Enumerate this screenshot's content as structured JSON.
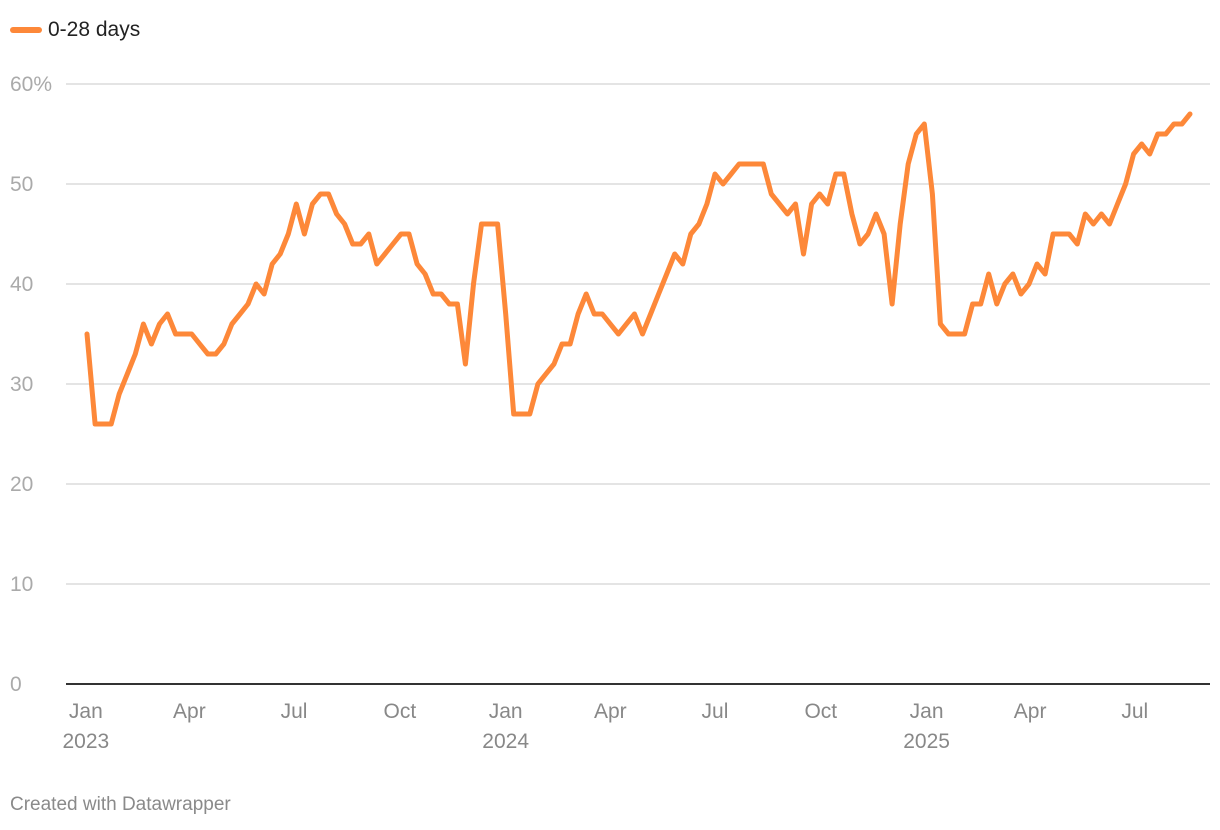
{
  "chart_data": {
    "type": "line",
    "legend_position": "top-left",
    "grid": true,
    "series": [
      {
        "name": "0-28 days",
        "color": "#fd8839",
        "points": [
          [
            "2023-01-02",
            35
          ],
          [
            "2023-01-09",
            26
          ],
          [
            "2023-01-16",
            26
          ],
          [
            "2023-01-23",
            26
          ],
          [
            "2023-01-30",
            29
          ],
          [
            "2023-02-06",
            31
          ],
          [
            "2023-02-13",
            33
          ],
          [
            "2023-02-20",
            36
          ],
          [
            "2023-02-27",
            34
          ],
          [
            "2023-03-06",
            36
          ],
          [
            "2023-03-13",
            37
          ],
          [
            "2023-03-20",
            35
          ],
          [
            "2023-03-27",
            35
          ],
          [
            "2023-04-03",
            35
          ],
          [
            "2023-04-10",
            34
          ],
          [
            "2023-04-17",
            33
          ],
          [
            "2023-04-24",
            33
          ],
          [
            "2023-05-01",
            34
          ],
          [
            "2023-05-08",
            36
          ],
          [
            "2023-05-15",
            37
          ],
          [
            "2023-05-22",
            38
          ],
          [
            "2023-05-29",
            40
          ],
          [
            "2023-06-05",
            39
          ],
          [
            "2023-06-12",
            42
          ],
          [
            "2023-06-19",
            43
          ],
          [
            "2023-06-26",
            45
          ],
          [
            "2023-07-03",
            48
          ],
          [
            "2023-07-10",
            45
          ],
          [
            "2023-07-17",
            48
          ],
          [
            "2023-07-24",
            49
          ],
          [
            "2023-07-31",
            49
          ],
          [
            "2023-08-07",
            47
          ],
          [
            "2023-08-14",
            46
          ],
          [
            "2023-08-21",
            44
          ],
          [
            "2023-08-28",
            44
          ],
          [
            "2023-09-04",
            45
          ],
          [
            "2023-09-11",
            42
          ],
          [
            "2023-09-18",
            43
          ],
          [
            "2023-09-25",
            44
          ],
          [
            "2023-10-02",
            45
          ],
          [
            "2023-10-09",
            45
          ],
          [
            "2023-10-16",
            42
          ],
          [
            "2023-10-23",
            41
          ],
          [
            "2023-10-30",
            39
          ],
          [
            "2023-11-06",
            39
          ],
          [
            "2023-11-13",
            38
          ],
          [
            "2023-11-20",
            38
          ],
          [
            "2023-11-27",
            32
          ],
          [
            "2023-12-04",
            40
          ],
          [
            "2023-12-11",
            46
          ],
          [
            "2023-12-18",
            46
          ],
          [
            "2023-12-25",
            46
          ],
          [
            "2024-01-01",
            37
          ],
          [
            "2024-01-08",
            27
          ],
          [
            "2024-01-15",
            27
          ],
          [
            "2024-01-22",
            27
          ],
          [
            "2024-01-29",
            30
          ],
          [
            "2024-02-05",
            31
          ],
          [
            "2024-02-12",
            32
          ],
          [
            "2024-02-19",
            34
          ],
          [
            "2024-02-26",
            34
          ],
          [
            "2024-03-04",
            37
          ],
          [
            "2024-03-11",
            39
          ],
          [
            "2024-03-18",
            37
          ],
          [
            "2024-03-25",
            37
          ],
          [
            "2024-04-01",
            36
          ],
          [
            "2024-04-08",
            35
          ],
          [
            "2024-04-15",
            36
          ],
          [
            "2024-04-22",
            37
          ],
          [
            "2024-04-29",
            35
          ],
          [
            "2024-05-06",
            37
          ],
          [
            "2024-05-13",
            39
          ],
          [
            "2024-05-20",
            41
          ],
          [
            "2024-05-27",
            43
          ],
          [
            "2024-06-03",
            42
          ],
          [
            "2024-06-10",
            45
          ],
          [
            "2024-06-17",
            46
          ],
          [
            "2024-06-24",
            48
          ],
          [
            "2024-07-01",
            51
          ],
          [
            "2024-07-08",
            50
          ],
          [
            "2024-07-15",
            51
          ],
          [
            "2024-07-22",
            52
          ],
          [
            "2024-07-29",
            52
          ],
          [
            "2024-08-05",
            52
          ],
          [
            "2024-08-12",
            52
          ],
          [
            "2024-08-19",
            49
          ],
          [
            "2024-08-26",
            48
          ],
          [
            "2024-09-02",
            47
          ],
          [
            "2024-09-09",
            48
          ],
          [
            "2024-09-16",
            43
          ],
          [
            "2024-09-23",
            48
          ],
          [
            "2024-09-30",
            49
          ],
          [
            "2024-10-07",
            48
          ],
          [
            "2024-10-14",
            51
          ],
          [
            "2024-10-21",
            51
          ],
          [
            "2024-10-28",
            47
          ],
          [
            "2024-11-04",
            44
          ],
          [
            "2024-11-11",
            45
          ],
          [
            "2024-11-18",
            47
          ],
          [
            "2024-11-25",
            45
          ],
          [
            "2024-12-02",
            38
          ],
          [
            "2024-12-09",
            46
          ],
          [
            "2024-12-16",
            52
          ],
          [
            "2024-12-23",
            55
          ],
          [
            "2024-12-30",
            56
          ],
          [
            "2025-01-06",
            49
          ],
          [
            "2025-01-13",
            36
          ],
          [
            "2025-01-20",
            35
          ],
          [
            "2025-01-27",
            35
          ],
          [
            "2025-02-03",
            35
          ],
          [
            "2025-02-10",
            38
          ],
          [
            "2025-02-17",
            38
          ],
          [
            "2025-02-24",
            41
          ],
          [
            "2025-03-03",
            38
          ],
          [
            "2025-03-10",
            40
          ],
          [
            "2025-03-17",
            41
          ],
          [
            "2025-03-24",
            39
          ],
          [
            "2025-03-31",
            40
          ],
          [
            "2025-04-07",
            42
          ],
          [
            "2025-04-14",
            41
          ],
          [
            "2025-04-21",
            45
          ],
          [
            "2025-04-28",
            45
          ],
          [
            "2025-05-05",
            45
          ],
          [
            "2025-05-12",
            44
          ],
          [
            "2025-05-19",
            47
          ],
          [
            "2025-05-26",
            46
          ],
          [
            "2025-06-02",
            47
          ],
          [
            "2025-06-09",
            46
          ],
          [
            "2025-06-16",
            48
          ],
          [
            "2025-06-23",
            50
          ],
          [
            "2025-06-30",
            53
          ],
          [
            "2025-07-07",
            54
          ],
          [
            "2025-07-14",
            53
          ],
          [
            "2025-07-21",
            55
          ],
          [
            "2025-07-28",
            55
          ],
          [
            "2025-08-04",
            56
          ],
          [
            "2025-08-11",
            56
          ],
          [
            "2025-08-18",
            57
          ]
        ]
      }
    ],
    "ylim": [
      0,
      60
    ],
    "y_ticks": [
      0,
      10,
      20,
      30,
      40,
      50,
      60
    ],
    "y_tick_labels": [
      "0",
      "10",
      "20",
      "30",
      "40",
      "50",
      "60%"
    ],
    "xlim": [
      "2023-01-02",
      "2025-08-18"
    ],
    "x_ticks": [
      {
        "date": "2023-01-01",
        "label": "Jan",
        "year": "2023"
      },
      {
        "date": "2023-04-01",
        "label": "Apr",
        "year": ""
      },
      {
        "date": "2023-07-01",
        "label": "Jul",
        "year": ""
      },
      {
        "date": "2023-10-01",
        "label": "Oct",
        "year": ""
      },
      {
        "date": "2024-01-01",
        "label": "Jan",
        "year": "2024"
      },
      {
        "date": "2024-04-01",
        "label": "Apr",
        "year": ""
      },
      {
        "date": "2024-07-01",
        "label": "Jul",
        "year": ""
      },
      {
        "date": "2024-10-01",
        "label": "Oct",
        "year": ""
      },
      {
        "date": "2025-01-01",
        "label": "Jan",
        "year": "2025"
      },
      {
        "date": "2025-04-01",
        "label": "Apr",
        "year": ""
      },
      {
        "date": "2025-07-01",
        "label": "Jul",
        "year": ""
      }
    ]
  },
  "footer": {
    "credit": "Created with Datawrapper"
  },
  "colors": {
    "line": "#fd8839",
    "grid": "#dcdcdc",
    "axis": "#333333"
  }
}
